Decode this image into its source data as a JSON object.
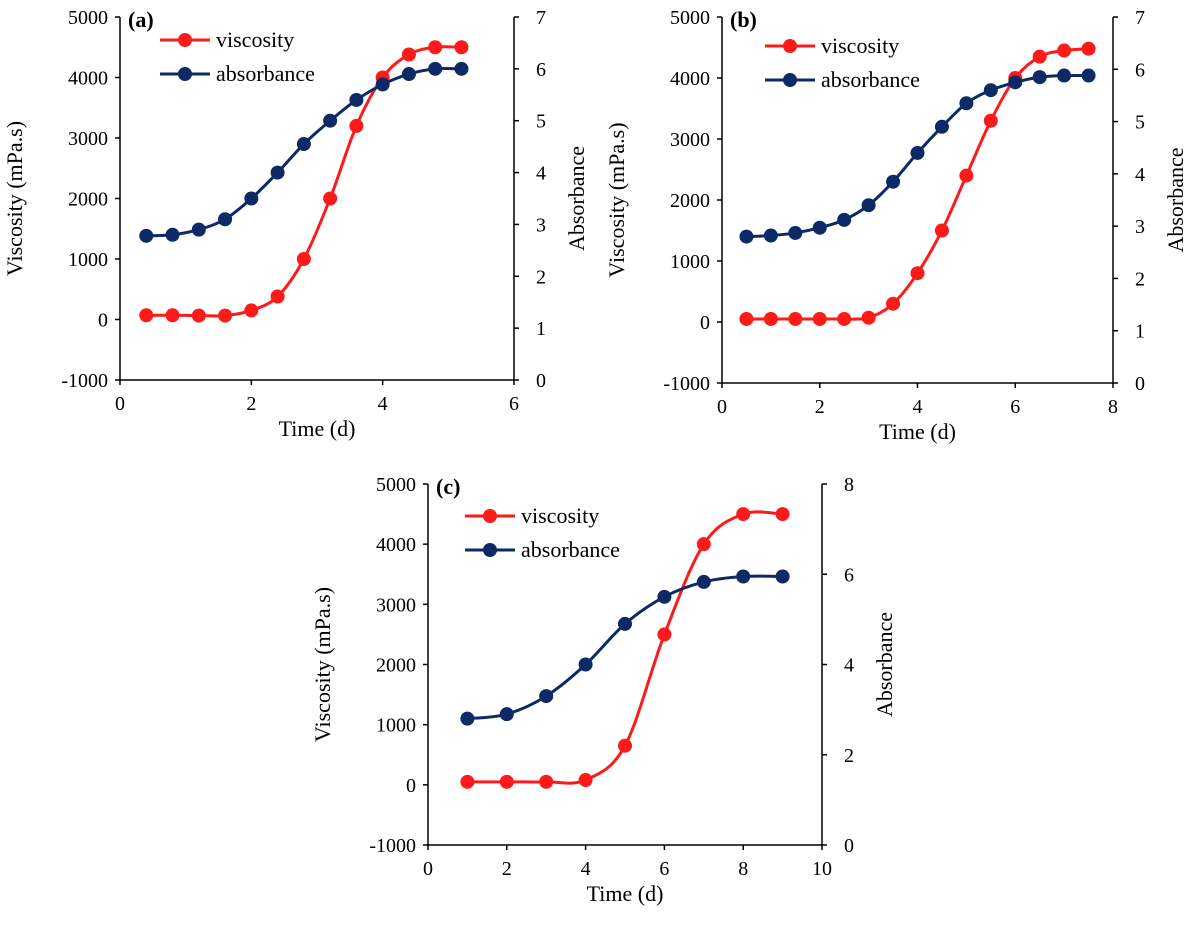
{
  "chart_data": [
    {
      "type": "line",
      "panel_label": "(a)",
      "xlabel": "Time (d)",
      "ylabel": "Viscosity (mPa.s)",
      "y2label": "Absorbance",
      "xlim": [
        0,
        6
      ],
      "ylim": [
        -1000,
        5000
      ],
      "y2lim": [
        0,
        7
      ],
      "xticks": [
        0,
        2,
        4,
        6
      ],
      "yticks": [
        -1000,
        0,
        1000,
        2000,
        3000,
        4000,
        5000
      ],
      "y2ticks": [
        0,
        1,
        2,
        3,
        4,
        5,
        6,
        7
      ],
      "legend_position": "top-left",
      "series": [
        {
          "name": "viscosity",
          "axis": "left",
          "color": "#ff1a1a",
          "x": [
            0.4,
            0.8,
            1.2,
            1.6,
            2.0,
            2.4,
            2.8,
            3.2,
            3.6,
            4.0,
            4.4,
            4.8,
            5.2
          ],
          "y": [
            70,
            70,
            65,
            65,
            150,
            380,
            1000,
            2000,
            3200,
            4000,
            4380,
            4500,
            4500
          ]
        },
        {
          "name": "absorbance",
          "axis": "right",
          "color": "#0d2a66",
          "x": [
            0.4,
            0.8,
            1.2,
            1.6,
            2.0,
            2.4,
            2.8,
            3.2,
            3.6,
            4.0,
            4.4,
            4.8,
            5.2
          ],
          "y": [
            2.78,
            2.8,
            2.9,
            3.1,
            3.5,
            4.0,
            4.55,
            5.0,
            5.4,
            5.7,
            5.9,
            6.0,
            6.0
          ]
        }
      ]
    },
    {
      "type": "line",
      "panel_label": "(b)",
      "xlabel": "Time (d)",
      "ylabel": "Viscosity (mPa.s)",
      "y2label": "Absorbance",
      "xlim": [
        0,
        8
      ],
      "ylim": [
        -1000,
        5000
      ],
      "y2lim": [
        0,
        7
      ],
      "xticks": [
        0,
        2,
        4,
        6,
        8
      ],
      "yticks": [
        -1000,
        0,
        1000,
        2000,
        3000,
        4000,
        5000
      ],
      "y2ticks": [
        0,
        1,
        2,
        3,
        4,
        5,
        6,
        7
      ],
      "legend_position": "top-left",
      "series": [
        {
          "name": "viscosity",
          "axis": "left",
          "color": "#ff1a1a",
          "x": [
            0.5,
            1.0,
            1.5,
            2.0,
            2.5,
            3.0,
            3.5,
            4.0,
            4.5,
            5.0,
            5.5,
            6.0,
            6.5,
            7.0,
            7.5
          ],
          "y": [
            50,
            50,
            50,
            50,
            50,
            70,
            300,
            800,
            1500,
            2400,
            3300,
            4000,
            4350,
            4450,
            4480
          ]
        },
        {
          "name": "absorbance",
          "axis": "right",
          "color": "#0d2a66",
          "x": [
            0.5,
            1.0,
            1.5,
            2.0,
            2.5,
            3.0,
            3.5,
            4.0,
            4.5,
            5.0,
            5.5,
            6.0,
            6.5,
            7.0,
            7.5
          ],
          "y": [
            2.8,
            2.82,
            2.87,
            2.97,
            3.12,
            3.4,
            3.85,
            4.4,
            4.9,
            5.35,
            5.6,
            5.75,
            5.85,
            5.88,
            5.88
          ]
        }
      ]
    },
    {
      "type": "line",
      "panel_label": "(c)",
      "xlabel": "Time (d)",
      "ylabel": "Viscosity (mPa.s)",
      "y2label": "Absorbance",
      "xlim": [
        0,
        10
      ],
      "ylim": [
        -1000,
        5000
      ],
      "y2lim": [
        0,
        8
      ],
      "xticks": [
        0,
        2,
        4,
        6,
        8,
        10
      ],
      "yticks": [
        -1000,
        0,
        1000,
        2000,
        3000,
        4000,
        5000
      ],
      "y2ticks": [
        0,
        2,
        4,
        6,
        8
      ],
      "legend_position": "top-left",
      "series": [
        {
          "name": "viscosity",
          "axis": "left",
          "color": "#ff1a1a",
          "x": [
            1,
            2,
            3,
            4,
            5,
            6,
            7,
            8,
            9
          ],
          "y": [
            50,
            50,
            50,
            80,
            650,
            2500,
            4000,
            4500,
            4500
          ]
        },
        {
          "name": "absorbance",
          "axis": "right",
          "color": "#0d2a66",
          "x": [
            1,
            2,
            3,
            4,
            5,
            6,
            7,
            8,
            9
          ],
          "y": [
            2.8,
            2.9,
            3.3,
            4.0,
            4.9,
            5.5,
            5.83,
            5.95,
            5.95
          ]
        }
      ]
    }
  ]
}
